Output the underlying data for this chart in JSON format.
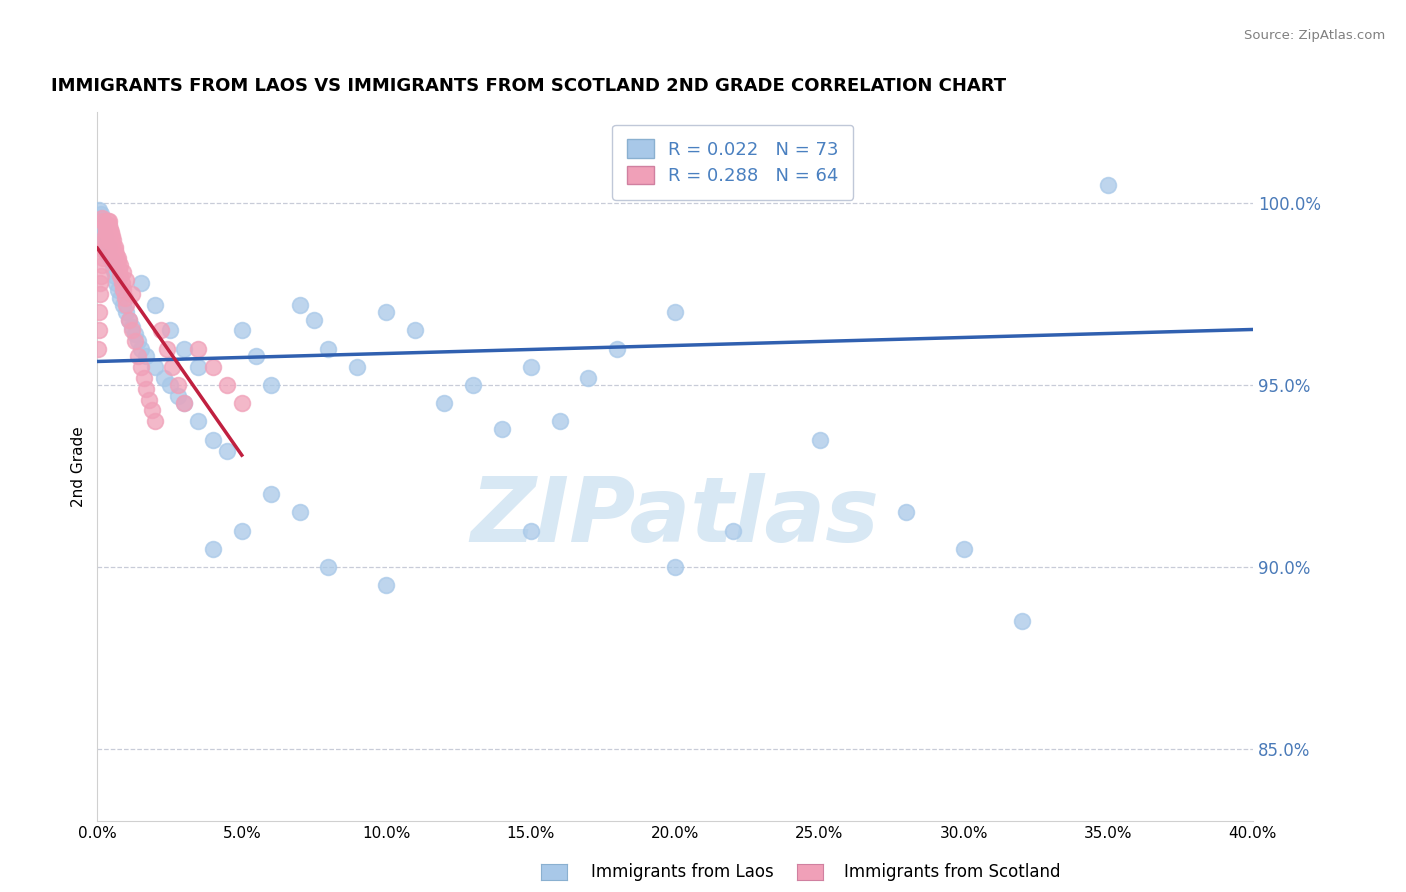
{
  "title": "IMMIGRANTS FROM LAOS VS IMMIGRANTS FROM SCOTLAND 2ND GRADE CORRELATION CHART",
  "source": "Source: ZipAtlas.com",
  "xlabel_laos": "Immigrants from Laos",
  "xlabel_scotland": "Immigrants from Scotland",
  "ylabel": "2nd Grade",
  "xlim": [
    0.0,
    40.0
  ],
  "ylim": [
    83.0,
    102.5
  ],
  "yticks": [
    85.0,
    90.0,
    95.0,
    100.0
  ],
  "xticks": [
    0.0,
    5.0,
    10.0,
    15.0,
    20.0,
    25.0,
    30.0,
    35.0,
    40.0
  ],
  "R_laos": 0.022,
  "N_laos": 73,
  "R_scotland": 0.288,
  "N_scotland": 64,
  "color_laos": "#a8c8e8",
  "color_scotland": "#f0a0b8",
  "color_trend_laos": "#3060b0",
  "color_trend_scotland": "#c02040",
  "watermark": "ZIPatlas",
  "watermark_color": "#d8e8f4",
  "laos_x": [
    0.05,
    0.08,
    0.1,
    0.12,
    0.15,
    0.18,
    0.2,
    0.22,
    0.25,
    0.28,
    0.3,
    0.32,
    0.35,
    0.4,
    0.45,
    0.5,
    0.55,
    0.6,
    0.65,
    0.7,
    0.8,
    0.9,
    1.0,
    1.1,
    1.2,
    1.3,
    1.4,
    1.5,
    1.7,
    2.0,
    2.3,
    2.5,
    2.8,
    3.0,
    3.5,
    4.0,
    4.5,
    5.0,
    5.5,
    6.0,
    7.0,
    7.5,
    8.0,
    9.0,
    10.0,
    11.0,
    12.0,
    13.0,
    14.0,
    15.0,
    16.0,
    17.0,
    18.0,
    20.0,
    22.0,
    25.0,
    28.0,
    30.0,
    32.0,
    35.0,
    1.5,
    2.0,
    2.5,
    3.0,
    3.5,
    4.0,
    5.0,
    6.0,
    7.0,
    8.0,
    10.0,
    15.0,
    20.0
  ],
  "laos_y": [
    99.8,
    99.6,
    99.5,
    99.7,
    99.4,
    99.3,
    99.2,
    99.0,
    99.1,
    98.9,
    98.8,
    98.7,
    98.6,
    98.8,
    98.5,
    98.4,
    98.2,
    98.0,
    97.8,
    97.6,
    97.4,
    97.2,
    97.0,
    96.8,
    96.6,
    96.4,
    96.2,
    96.0,
    95.8,
    95.5,
    95.2,
    95.0,
    94.7,
    94.5,
    94.0,
    93.5,
    93.2,
    96.5,
    95.8,
    95.0,
    97.2,
    96.8,
    96.0,
    95.5,
    97.0,
    96.5,
    94.5,
    95.0,
    93.8,
    95.5,
    94.0,
    95.2,
    96.0,
    97.0,
    91.0,
    93.5,
    91.5,
    90.5,
    88.5,
    100.5,
    97.8,
    97.2,
    96.5,
    96.0,
    95.5,
    90.5,
    91.0,
    92.0,
    91.5,
    90.0,
    89.5,
    91.0,
    90.0
  ],
  "scotland_x": [
    0.02,
    0.04,
    0.06,
    0.08,
    0.1,
    0.12,
    0.15,
    0.18,
    0.2,
    0.22,
    0.25,
    0.28,
    0.3,
    0.32,
    0.35,
    0.38,
    0.4,
    0.42,
    0.45,
    0.48,
    0.5,
    0.55,
    0.6,
    0.65,
    0.7,
    0.75,
    0.8,
    0.85,
    0.9,
    0.95,
    1.0,
    1.1,
    1.2,
    1.3,
    1.4,
    1.5,
    1.6,
    1.7,
    1.8,
    1.9,
    2.0,
    2.2,
    2.4,
    2.6,
    2.8,
    3.0,
    3.5,
    4.0,
    4.5,
    5.0,
    0.15,
    0.2,
    0.25,
    0.3,
    0.35,
    0.4,
    0.45,
    0.5,
    0.6,
    0.7,
    0.8,
    0.9,
    1.0,
    1.2
  ],
  "scotland_y": [
    96.0,
    96.5,
    97.0,
    97.5,
    97.8,
    98.0,
    98.3,
    98.5,
    98.7,
    98.8,
    99.0,
    99.1,
    99.2,
    99.3,
    99.4,
    99.5,
    99.5,
    99.4,
    99.3,
    99.2,
    99.1,
    99.0,
    98.8,
    98.6,
    98.4,
    98.2,
    98.0,
    97.8,
    97.6,
    97.4,
    97.2,
    96.8,
    96.5,
    96.2,
    95.8,
    95.5,
    95.2,
    94.9,
    94.6,
    94.3,
    94.0,
    96.5,
    96.0,
    95.5,
    95.0,
    94.5,
    96.0,
    95.5,
    95.0,
    94.5,
    99.6,
    99.5,
    99.4,
    99.3,
    99.2,
    99.1,
    99.0,
    98.9,
    98.7,
    98.5,
    98.3,
    98.1,
    97.9,
    97.5
  ]
}
